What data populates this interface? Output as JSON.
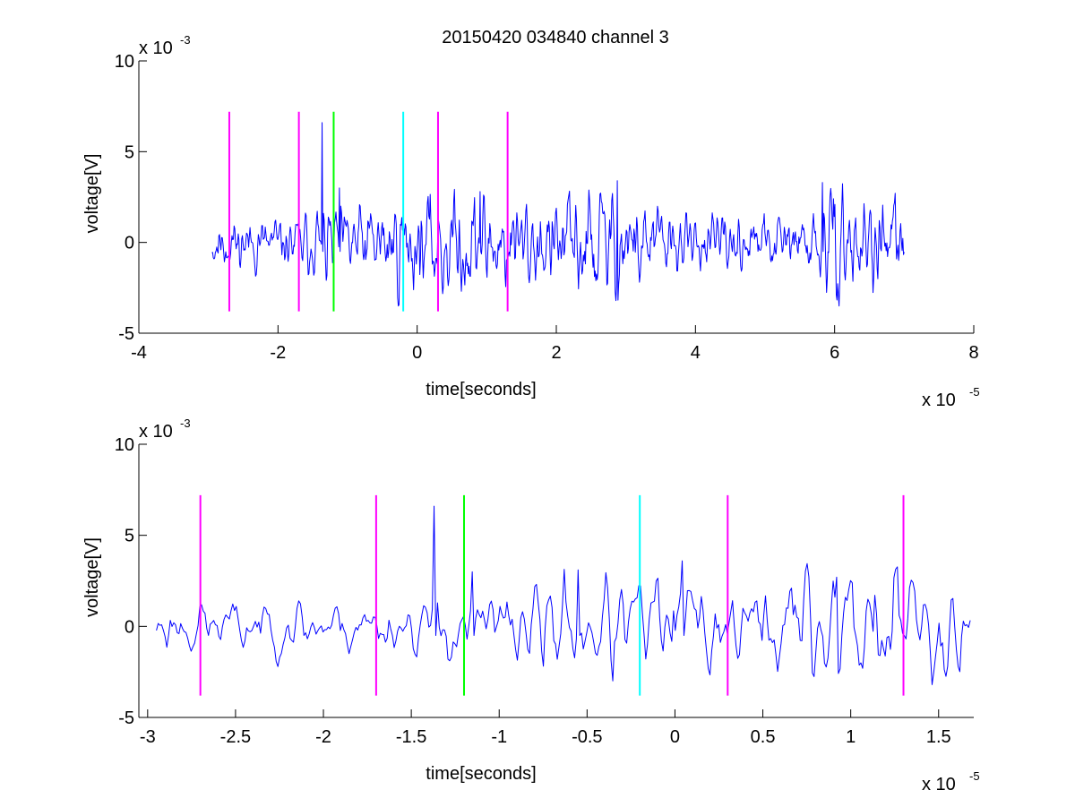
{
  "figure": {
    "title": "20150420 034840 channel 3"
  },
  "chart_data": [
    {
      "type": "line",
      "title": "20150420 034840 channel 3",
      "xlabel": "time[seconds]",
      "ylabel": "voltage[V]",
      "x_scale_label": "x 10",
      "x_scale_exponent": "-5",
      "y_scale_label": "x 10",
      "y_scale_exponent": "-3",
      "xlim": [
        -4,
        8
      ],
      "ylim": [
        -5,
        10
      ],
      "x_ticks": [
        -4,
        -2,
        0,
        2,
        4,
        6,
        8
      ],
      "x_tick_labels": [
        "-4",
        "-2",
        "0",
        "2",
        "4",
        "6",
        "8"
      ],
      "y_ticks": [
        -5,
        0,
        5,
        10
      ],
      "y_tick_labels": [
        "-5",
        "0",
        "5",
        "10"
      ],
      "grid": false,
      "signal": {
        "color": "#0000ff",
        "x_start": -2.95,
        "x_end": 7.0,
        "samples": 1000,
        "seed": 11,
        "rms": 1.1,
        "envelope": [
          [
            -2.95,
            0.65
          ],
          [
            -1.5,
            0.6
          ],
          [
            -1.35,
            0.9
          ],
          [
            -1.0,
            0.9
          ],
          [
            0.5,
            1.3
          ],
          [
            2.0,
            1.0
          ],
          [
            2.5,
            1.5
          ],
          [
            3.2,
            1.1
          ],
          [
            4.0,
            0.55
          ],
          [
            5.5,
            0.7
          ],
          [
            6.0,
            1.25
          ],
          [
            7.0,
            1.05
          ]
        ],
        "spikes": [
          [
            -1.37,
            6.6
          ],
          [
            -1.12,
            3.0
          ],
          [
            0.9,
            2.8
          ],
          [
            2.88,
            3.4
          ],
          [
            5.82,
            3.3
          ]
        ],
        "y_min": -3.5,
        "y_max": 6.6
      },
      "markers": [
        {
          "x": -2.7,
          "color": "#ff00ff",
          "ymin": -3.8,
          "ymax": 7.2
        },
        {
          "x": -1.7,
          "color": "#ff00ff",
          "ymin": -3.8,
          "ymax": 7.2
        },
        {
          "x": -1.2,
          "color": "#00ff00",
          "ymin": -3.8,
          "ymax": 7.2
        },
        {
          "x": -0.2,
          "color": "#00ffff",
          "ymin": -3.8,
          "ymax": 7.2
        },
        {
          "x": 0.3,
          "color": "#ff00ff",
          "ymin": -3.8,
          "ymax": 7.2
        },
        {
          "x": 1.3,
          "color": "#ff00ff",
          "ymin": -3.8,
          "ymax": 7.2
        }
      ]
    },
    {
      "type": "line",
      "title": "",
      "xlabel": "time[seconds]",
      "ylabel": "voltage[V]",
      "x_scale_label": "x 10",
      "x_scale_exponent": "-5",
      "y_scale_label": "x 10",
      "y_scale_exponent": "-3",
      "xlim": [
        -3.05,
        1.7
      ],
      "ylim": [
        -5,
        10
      ],
      "x_ticks": [
        -3,
        -2.5,
        -2,
        -1.5,
        -1,
        -0.5,
        0,
        0.5,
        1,
        1.5
      ],
      "x_tick_labels": [
        "-3",
        "-2.5",
        "-2",
        "-1.5",
        "-1",
        "-0.5",
        "0",
        "0.5",
        "1",
        "1.5"
      ],
      "y_ticks": [
        -5,
        0,
        5,
        10
      ],
      "y_tick_labels": [
        "-5",
        "0",
        "5",
        "10"
      ],
      "grid": false,
      "signal": {
        "color": "#0000ff",
        "x_start": -2.95,
        "x_end": 1.68,
        "samples": 470,
        "seed": 23,
        "rms": 1.1,
        "envelope": [
          [
            -2.95,
            0.6
          ],
          [
            -1.45,
            0.6
          ],
          [
            -1.3,
            0.9
          ],
          [
            -0.9,
            0.85
          ],
          [
            -0.6,
            1.3
          ],
          [
            -0.3,
            1.1
          ],
          [
            0.0,
            1.3
          ],
          [
            0.4,
            0.9
          ],
          [
            0.8,
            1.7
          ],
          [
            1.3,
            1.7
          ],
          [
            1.68,
            1.0
          ]
        ],
        "spikes": [
          [
            -1.37,
            6.6
          ],
          [
            -1.15,
            3.0
          ],
          [
            -0.55,
            3.1
          ],
          [
            0.04,
            3.6
          ],
          [
            0.92,
            2.7
          ]
        ],
        "y_min": -3.2,
        "y_max": 6.6
      },
      "markers": [
        {
          "x": -2.7,
          "color": "#ff00ff",
          "ymin": -3.8,
          "ymax": 7.2
        },
        {
          "x": -1.7,
          "color": "#ff00ff",
          "ymin": -3.8,
          "ymax": 7.2
        },
        {
          "x": -1.2,
          "color": "#00ff00",
          "ymin": -3.8,
          "ymax": 7.2
        },
        {
          "x": -0.2,
          "color": "#00ffff",
          "ymin": -3.8,
          "ymax": 7.2
        },
        {
          "x": 0.3,
          "color": "#ff00ff",
          "ymin": -3.8,
          "ymax": 7.2
        },
        {
          "x": 1.3,
          "color": "#ff00ff",
          "ymin": -3.8,
          "ymax": 7.2
        }
      ]
    }
  ]
}
